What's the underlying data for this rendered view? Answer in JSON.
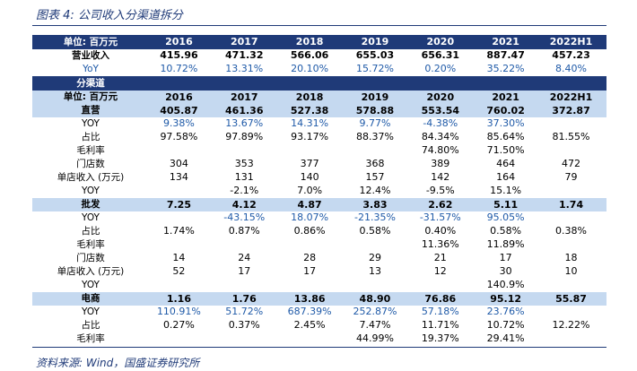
{
  "title": "图表 4: 公司收入分渠道拆分",
  "source": "资料来源: Wind，国盛证券研究所",
  "header": {
    "label": "单位: 百万元",
    "years": [
      "2016",
      "2017",
      "2018",
      "2019",
      "2020",
      "2021",
      "2022H1"
    ]
  },
  "revenue": {
    "label": "营业收入",
    "values": [
      "415.96",
      "471.32",
      "566.06",
      "655.03",
      "656.31",
      "887.47",
      "457.23"
    ]
  },
  "revenue_yoy": {
    "label": "YoY",
    "values": [
      "10.72%",
      "13.31%",
      "20.10%",
      "15.72%",
      "0.20%",
      "35.22%",
      "8.40%"
    ]
  },
  "channel_header": {
    "label": "分渠道"
  },
  "channel_unit": {
    "label": "单位: 百万元",
    "years": [
      "2016",
      "2017",
      "2018",
      "2019",
      "2020",
      "2021",
      "2022H1"
    ]
  },
  "direct": {
    "label": "直营",
    "values": [
      "405.87",
      "461.36",
      "527.38",
      "578.88",
      "553.54",
      "760.02",
      "372.87"
    ]
  },
  "direct_rows": [
    {
      "label": "YOY",
      "values": [
        "9.38%",
        "13.67%",
        "14.31%",
        "9.77%",
        "-4.38%",
        "37.30%",
        ""
      ],
      "blue": true
    },
    {
      "label": "占比",
      "values": [
        "97.58%",
        "97.89%",
        "93.17%",
        "88.37%",
        "84.34%",
        "85.64%",
        "81.55%"
      ],
      "blue": false
    },
    {
      "label": "毛利率",
      "values": [
        "",
        "",
        "",
        "",
        "74.80%",
        "71.50%",
        ""
      ],
      "blue": false
    },
    {
      "label": "门店数",
      "values": [
        "304",
        "353",
        "377",
        "368",
        "389",
        "464",
        "472"
      ],
      "blue": false
    },
    {
      "label": "单店收入 (万元)",
      "values": [
        "134",
        "131",
        "140",
        "157",
        "142",
        "164",
        "79"
      ],
      "blue": false
    },
    {
      "label": "YOY",
      "values": [
        "",
        "-2.1%",
        "7.0%",
        "12.4%",
        "-9.5%",
        "15.1%",
        ""
      ],
      "blue": false
    }
  ],
  "wholesale": {
    "label": "批发",
    "values": [
      "7.25",
      "4.12",
      "4.87",
      "3.83",
      "2.62",
      "5.11",
      "1.74"
    ]
  },
  "wholesale_rows": [
    {
      "label": "YOY",
      "values": [
        "",
        "-43.15%",
        "18.07%",
        "-21.35%",
        "-31.57%",
        "95.05%",
        ""
      ],
      "blue": true
    },
    {
      "label": "占比",
      "values": [
        "1.74%",
        "0.87%",
        "0.86%",
        "0.58%",
        "0.40%",
        "0.58%",
        "0.38%"
      ],
      "blue": false
    },
    {
      "label": "毛利率",
      "values": [
        "",
        "",
        "",
        "",
        "11.36%",
        "11.89%",
        ""
      ],
      "blue": false
    },
    {
      "label": "门店数",
      "values": [
        "14",
        "24",
        "28",
        "29",
        "21",
        "17",
        "18"
      ],
      "blue": false
    },
    {
      "label": "单店收入 (万元)",
      "values": [
        "52",
        "17",
        "17",
        "13",
        "12",
        "30",
        "10"
      ],
      "blue": false
    },
    {
      "label": "YOY",
      "values": [
        "",
        "",
        "",
        "",
        "",
        "140.9%",
        ""
      ],
      "blue": false
    }
  ],
  "ecommerce": {
    "label": "电商",
    "values": [
      "1.16",
      "1.76",
      "13.86",
      "48.90",
      "76.86",
      "95.12",
      "55.87"
    ]
  },
  "ecommerce_rows": [
    {
      "label": "YOY",
      "values": [
        "110.91%",
        "51.72%",
        "687.39%",
        "252.87%",
        "57.18%",
        "23.76%",
        ""
      ],
      "blue": true
    },
    {
      "label": "占比",
      "values": [
        "0.27%",
        "0.37%",
        "2.45%",
        "7.47%",
        "11.71%",
        "10.72%",
        "12.22%"
      ],
      "blue": false
    },
    {
      "label": "毛利率",
      "values": [
        "",
        "",
        "",
        "44.99%",
        "19.37%",
        "29.41%",
        ""
      ],
      "blue": false
    }
  ]
}
